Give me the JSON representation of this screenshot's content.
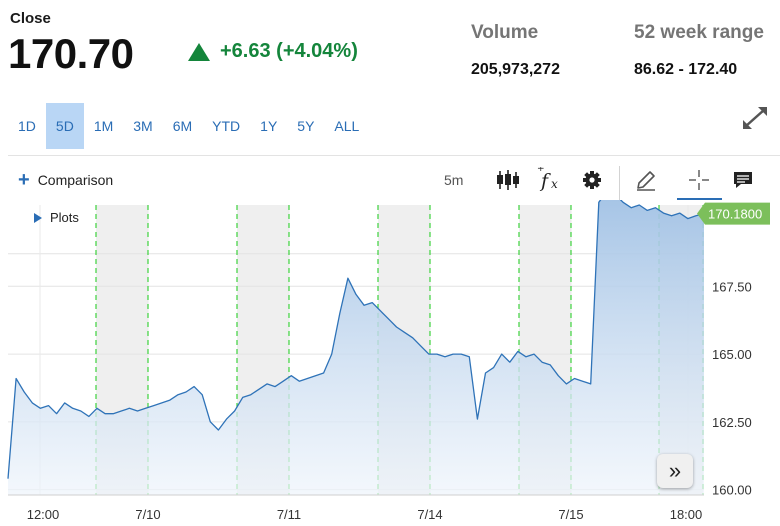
{
  "quote": {
    "close_label": "Close",
    "price": "170.70",
    "change": "+6.63 (+4.04%)",
    "volume_label": "Volume",
    "volume_value": "205,973,272",
    "range_label": "52 week range",
    "range_value": "86.62 - 172.40"
  },
  "ranges": [
    "1D",
    "5D",
    "1M",
    "3M",
    "6M",
    "YTD",
    "1Y",
    "5Y",
    "ALL"
  ],
  "active_range": "5D",
  "toolbar": {
    "comparison_label": "Comparison",
    "interval": "5m"
  },
  "plots_label": "Plots",
  "icons": [
    "up-triangle-icon",
    "expand-icon",
    "plus-icon",
    "candlestick-icon",
    "function-icon",
    "gear-icon",
    "pencil-icon",
    "crosshair-icon",
    "comment-icon",
    "play-icon",
    "double-chevron-right-icon"
  ],
  "colors": {
    "line": "#2f73b8",
    "gain": "#14853b",
    "accent": "#2a6db5",
    "badge": "#7cbf5b",
    "session_shade": "#efefef",
    "session_line": "#3cd13c"
  },
  "chart_data": {
    "type": "area",
    "x_ticks": [
      "12:00",
      "7/10",
      "7/11",
      "7/14",
      "7/15",
      "18:00"
    ],
    "y_ticks": [
      "160.00",
      "162.50",
      "165.00",
      "167.50"
    ],
    "ylim": [
      159.8,
      170.5
    ],
    "last_value": "170.1800",
    "grid": true,
    "extended_hours_shaded": true,
    "series": [
      {
        "values": [
          160.4,
          164.1,
          163.6,
          163.2,
          163.0,
          163.1,
          162.8,
          163.2,
          163.0,
          162.9,
          162.7,
          163.0,
          162.8,
          162.8,
          162.9,
          163.0,
          162.9,
          163.0,
          163.1,
          163.2,
          163.3,
          163.5,
          163.6,
          163.8,
          163.5,
          162.5,
          162.2,
          162.6,
          162.9,
          163.4,
          163.5,
          163.7,
          163.9,
          163.8,
          164.0,
          164.2,
          164.0,
          164.1,
          164.2,
          164.3,
          165.0,
          166.5,
          167.8,
          167.2,
          166.8,
          166.9,
          166.6,
          166.3,
          166.0,
          165.8,
          165.6,
          165.3,
          165.0,
          165.0,
          164.9,
          165.0,
          165.0,
          164.9,
          162.6,
          164.3,
          164.5,
          165.0,
          164.7,
          165.1,
          164.9,
          165.0,
          164.7,
          164.6,
          164.2,
          163.9,
          164.1,
          164.0,
          163.9,
          170.6,
          171.0,
          170.9,
          170.6,
          170.4,
          170.5,
          170.3,
          170.4,
          170.2,
          170.1,
          170.2,
          170.0,
          170.1,
          170.18
        ]
      }
    ]
  }
}
